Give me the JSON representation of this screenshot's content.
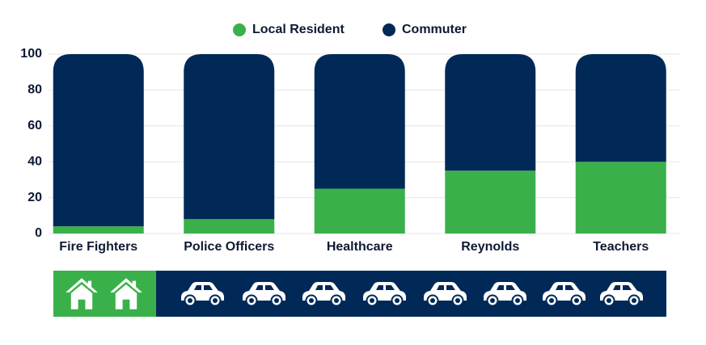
{
  "chart_data": {
    "type": "stacked-bar",
    "categories": [
      "Fire Fighters",
      "Police Officers",
      "Healthcare",
      "Reynolds",
      "Teachers"
    ],
    "series": [
      {
        "name": "Local Resident",
        "color": "#3ab04a",
        "values": [
          4,
          8,
          25,
          35,
          40
        ]
      },
      {
        "name": "Commuter",
        "color": "#012957",
        "values": [
          96,
          92,
          75,
          65,
          60
        ]
      }
    ],
    "ylim": [
      0,
      100
    ],
    "yticks": [
      0,
      20,
      40,
      60,
      80,
      100
    ],
    "grid": true
  }
}
